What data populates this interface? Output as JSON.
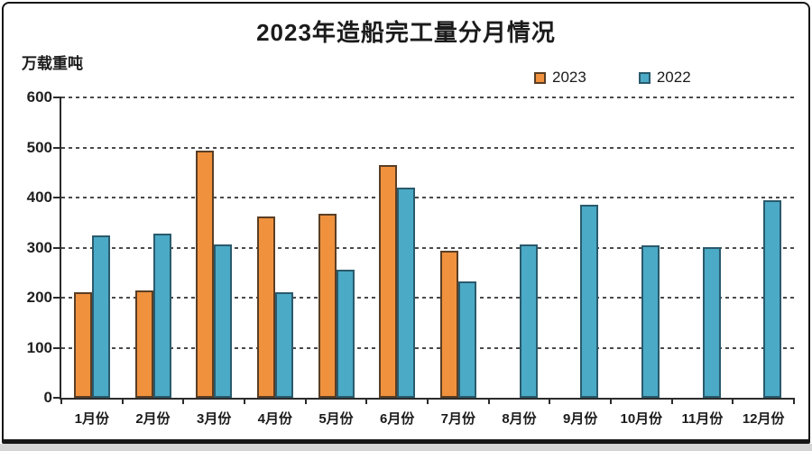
{
  "chart_data": {
    "type": "bar",
    "title": "2023年造船完工量分月情况",
    "unit_label": "万载重吨",
    "categories": [
      "1月份",
      "2月份",
      "3月份",
      "4月份",
      "5月份",
      "6月份",
      "7月份",
      "8月份",
      "9月份",
      "10月份",
      "11月份",
      "12月份"
    ],
    "series": [
      {
        "name": "2023",
        "color": "#F0913E",
        "border_color": "#5A3E24",
        "values": [
          211,
          214,
          493,
          363,
          367,
          465,
          293,
          null,
          null,
          null,
          null,
          null
        ]
      },
      {
        "name": "2022",
        "color": "#4BAAC6",
        "border_color": "#2A5A6C",
        "values": [
          324,
          328,
          306,
          211,
          255,
          420,
          233,
          307,
          385,
          305,
          301,
          395
        ]
      }
    ],
    "ylim": [
      0,
      600
    ],
    "ytick_step": 100,
    "yticks": [
      600,
      500,
      400,
      300,
      200,
      100,
      0
    ],
    "grid": "horizontal-dashed",
    "legend_position": "top-right"
  },
  "colors": {
    "axis": "#2b2b2b",
    "gridline": "#4a4a4a",
    "text": "#1b1b1b",
    "frame": "#161616",
    "bottom_strip": "#d4d4d4"
  }
}
